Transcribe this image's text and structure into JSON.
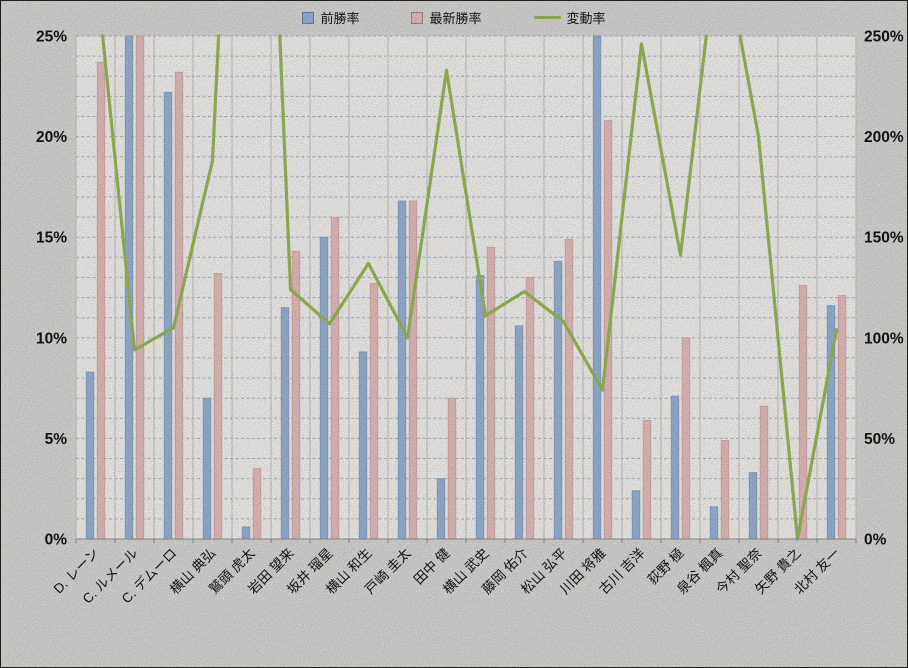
{
  "chart_data": {
    "type": "combo-bar-line",
    "title": "",
    "categories": [
      "D. レーン",
      "C. ルメール",
      "C. デムーロ",
      "横山 典弘",
      "鷲頭 虎太",
      "岩田 望来",
      "坂井 瑠星",
      "横山 和生",
      "戸崎 圭太",
      "田中 健",
      "横山 武史",
      "藤岡 佑介",
      "松山 弘平",
      "川田 将雅",
      "古川 吉洋",
      "荻野 極",
      "泉谷 楓真",
      "今村 聖奈",
      "矢野 貴之",
      "北村 友一"
    ],
    "series": [
      {
        "name": "前勝率",
        "type": "bar",
        "axis": "left",
        "color": "#9cb6d8",
        "values": [
          8.3,
          26.5,
          22.2,
          7.0,
          0.6,
          11.5,
          15.0,
          9.3,
          16.8,
          3.0,
          13.1,
          10.6,
          13.8,
          28.3,
          2.4,
          7.1,
          1.6,
          3.3,
          0,
          11.6
        ]
      },
      {
        "name": "最新勝率",
        "type": "bar",
        "axis": "left",
        "color": "#e8c1c0",
        "values": [
          23.7,
          25.0,
          23.2,
          13.2,
          3.5,
          14.3,
          16.0,
          12.7,
          16.8,
          7.0,
          14.5,
          13.0,
          14.9,
          20.8,
          5.9,
          10.0,
          4.9,
          6.6,
          12.6,
          12.1
        ]
      },
      {
        "name": "変動率",
        "type": "line",
        "axis": "right",
        "color": "#9bbb59",
        "values": [
          285,
          94,
          105,
          188,
          583,
          124,
          107,
          137,
          100,
          233,
          111,
          123,
          108,
          74,
          246,
          141,
          306,
          200,
          0,
          104
        ]
      }
    ],
    "left_axis": {
      "min": 0,
      "max": 25,
      "tick_labels": [
        "0%",
        "5%",
        "10%",
        "15%",
        "20%",
        "25%"
      ]
    },
    "right_axis": {
      "min": 0,
      "max": 250,
      "tick_labels": [
        "0%",
        "50%",
        "100%",
        "150%",
        "200%",
        "250%"
      ]
    },
    "grid": {
      "horizontal": "dashed every 1%",
      "vertical": "solid per category"
    },
    "legend_position": "top",
    "note_clipping": "values above axis max are clipped at plot top"
  }
}
